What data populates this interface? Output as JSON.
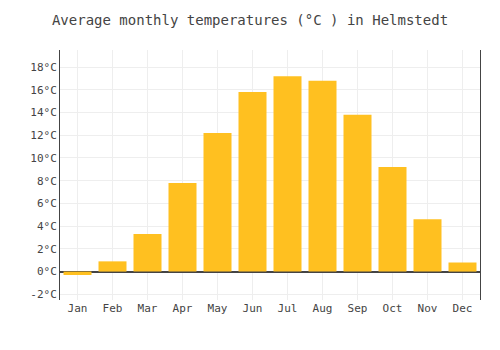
{
  "chart_data": {
    "type": "bar",
    "title": "Average monthly temperatures (°C ) in Helmstedt",
    "categories": [
      "Jan",
      "Feb",
      "Mar",
      "Apr",
      "May",
      "Jun",
      "Jul",
      "Aug",
      "Sep",
      "Oct",
      "Nov",
      "Dec"
    ],
    "values": [
      -0.3,
      0.9,
      3.3,
      7.8,
      12.2,
      15.8,
      17.2,
      16.8,
      13.8,
      9.2,
      4.6,
      0.8
    ],
    "color": "#FFC020",
    "ylim": [
      -2.5,
      19.5
    ],
    "yticks": [
      {
        "value": -2,
        "label": "-2°C"
      },
      {
        "value": 0,
        "label": "0°C"
      },
      {
        "value": 2,
        "label": "2°C"
      },
      {
        "value": 4,
        "label": "4°C"
      },
      {
        "value": 6,
        "label": "6°C"
      },
      {
        "value": 8,
        "label": "8°C"
      },
      {
        "value": 10,
        "label": "10°C"
      },
      {
        "value": 12,
        "label": "12°C"
      },
      {
        "value": 14,
        "label": "14°C"
      },
      {
        "value": 16,
        "label": "16°C"
      },
      {
        "value": 18,
        "label": "18°C"
      }
    ],
    "grid": true
  }
}
